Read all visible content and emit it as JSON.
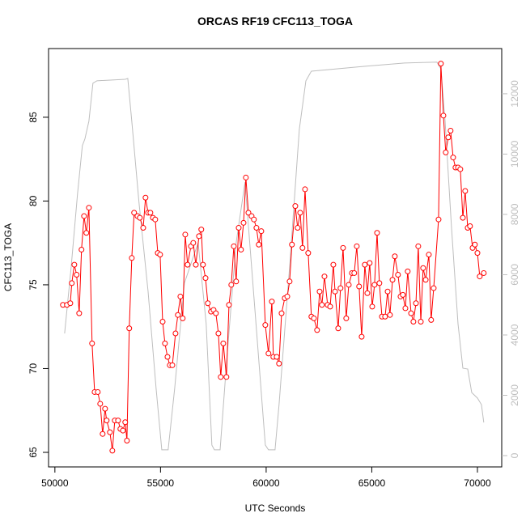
{
  "chart_data": {
    "type": "line",
    "title": "ORCAS RF19 CFC113_TOGA",
    "xlabel": "UTC Seconds",
    "ylabel": "CFC113_TOGA",
    "xlim": [
      49700,
      71150
    ],
    "xticks": [
      50000,
      55000,
      60000,
      65000,
      70000
    ],
    "ylim": [
      64.13,
      89.1
    ],
    "yticks": [
      65,
      70,
      75,
      80,
      85
    ],
    "y2lim": [
      -376,
      13500
    ],
    "y2ticks": [
      0,
      2000,
      4000,
      6000,
      8000,
      10000,
      12000
    ],
    "series": [
      {
        "color": "#bebebe",
        "axis": "y2",
        "marker": "none",
        "x": [
          50460,
          50770,
          51070,
          51300,
          51420,
          51610,
          51800,
          51990,
          53330,
          53450,
          53640,
          53980,
          54410,
          54790,
          55060,
          55360,
          55670,
          56130,
          56780,
          57160,
          57430,
          57550,
          57820,
          58120,
          58580,
          59000,
          59460,
          59960,
          60110,
          60420,
          60610,
          61110,
          61570,
          61880,
          62140,
          64630,
          66550,
          68080,
          68270,
          68470,
          68770,
          69080,
          69310,
          69540,
          69730,
          70000,
          70190,
          70300
        ],
        "values": [
          4050,
          6250,
          8670,
          10280,
          10500,
          11090,
          12350,
          12430,
          12480,
          12510,
          11090,
          8400,
          5450,
          2230,
          190,
          190,
          2230,
          5720,
          7060,
          4380,
          350,
          190,
          190,
          3030,
          7060,
          9070,
          4910,
          350,
          190,
          190,
          1690,
          6260,
          10820,
          12430,
          12750,
          12910,
          13020,
          13050,
          12830,
          11090,
          7600,
          4380,
          2900,
          2870,
          2090,
          1910,
          1690,
          1100
        ]
      },
      {
        "color": "#ff0000",
        "marker": "circle",
        "x": [
          50380,
          50570,
          50730,
          50800,
          50920,
          51030,
          51150,
          51260,
          51380,
          51490,
          51610,
          51760,
          51880,
          52030,
          52145,
          52260,
          52375,
          52450,
          52605,
          52720,
          52835,
          52990,
          53100,
          53220,
          53330,
          53410,
          53520,
          53640,
          53750,
          53910,
          54020,
          54180,
          54290,
          54410,
          54520,
          54640,
          54750,
          54870,
          54980,
          55100,
          55210,
          55330,
          55440,
          55560,
          55710,
          55820,
          55940,
          56050,
          56170,
          56280,
          56440,
          56550,
          56670,
          56820,
          56930,
          57010,
          57130,
          57240,
          57390,
          57510,
          57620,
          57740,
          57850,
          57970,
          58120,
          58240,
          58350,
          58470,
          58580,
          58700,
          58810,
          58930,
          59040,
          59160,
          59310,
          59420,
          59540,
          59650,
          59770,
          59960,
          60110,
          60270,
          60340,
          60500,
          60610,
          60730,
          60880,
          61000,
          61110,
          61220,
          61380,
          61490,
          61610,
          61720,
          61840,
          61990,
          62140,
          62260,
          62410,
          62530,
          62640,
          62760,
          62910,
          63030,
          63180,
          63260,
          63410,
          63520,
          63640,
          63790,
          63910,
          64060,
          64170,
          64290,
          64400,
          64520,
          64670,
          64790,
          64900,
          65020,
          65130,
          65250,
          65360,
          65480,
          65630,
          65750,
          65860,
          65980,
          66090,
          66240,
          66360,
          66470,
          66590,
          66700,
          66860,
          66970,
          67090,
          67200,
          67320,
          67430,
          67550,
          67700,
          67810,
          67930,
          68160,
          68270,
          68390,
          68500,
          68620,
          68730,
          68850,
          68960,
          69080,
          69190,
          69310,
          69420,
          69540,
          69650,
          69770,
          69880,
          70000,
          70110,
          70300
        ],
        "values": [
          73.8,
          73.8,
          73.9,
          75.1,
          76.2,
          75.6,
          73.3,
          77.1,
          79.1,
          78.1,
          79.6,
          71.5,
          68.6,
          68.6,
          67.9,
          66.1,
          67.6,
          66.9,
          66.2,
          65.1,
          66.9,
          66.9,
          66.4,
          66.3,
          66.8,
          65.7,
          72.4,
          76.6,
          79.3,
          79.1,
          79.0,
          78.4,
          80.2,
          79.3,
          79.3,
          79.0,
          78.9,
          76.9,
          76.8,
          72.8,
          71.5,
          70.7,
          70.2,
          70.2,
          72.1,
          73.2,
          74.3,
          73.0,
          78.0,
          76.2,
          77.3,
          77.5,
          76.2,
          77.9,
          78.3,
          76.2,
          75.4,
          73.9,
          73.4,
          73.5,
          73.3,
          72.1,
          69.5,
          71.5,
          69.5,
          73.8,
          75.0,
          77.3,
          75.2,
          78.4,
          77.1,
          78.7,
          81.4,
          79.3,
          79.1,
          78.9,
          78.4,
          77.4,
          78.2,
          72.6,
          70.9,
          74.0,
          70.7,
          70.7,
          70.3,
          73.3,
          74.2,
          74.3,
          75.2,
          77.4,
          79.7,
          78.4,
          79.3,
          77.2,
          80.7,
          76.9,
          73.1,
          73.0,
          72.3,
          74.6,
          73.8,
          75.5,
          73.8,
          73.7,
          76.2,
          74.6,
          72.4,
          74.8,
          77.2,
          73.0,
          75.0,
          75.7,
          75.7,
          77.3,
          74.9,
          71.9,
          76.2,
          74.5,
          76.3,
          73.7,
          75.0,
          78.1,
          75.1,
          73.1,
          73.1,
          74.6,
          73.2,
          75.3,
          76.7,
          75.6,
          74.3,
          74.4,
          73.6,
          75.8,
          73.3,
          72.8,
          73.9,
          77.3,
          72.8,
          76.0,
          75.3,
          76.8,
          72.9,
          74.8,
          78.9,
          88.2,
          85.1,
          82.9,
          83.8,
          84.2,
          82.6,
          82.0,
          82.0,
          81.9,
          79.0,
          80.6,
          78.4,
          78.5,
          77.2,
          77.4,
          76.9,
          75.5,
          75.7
        ]
      }
    ]
  }
}
